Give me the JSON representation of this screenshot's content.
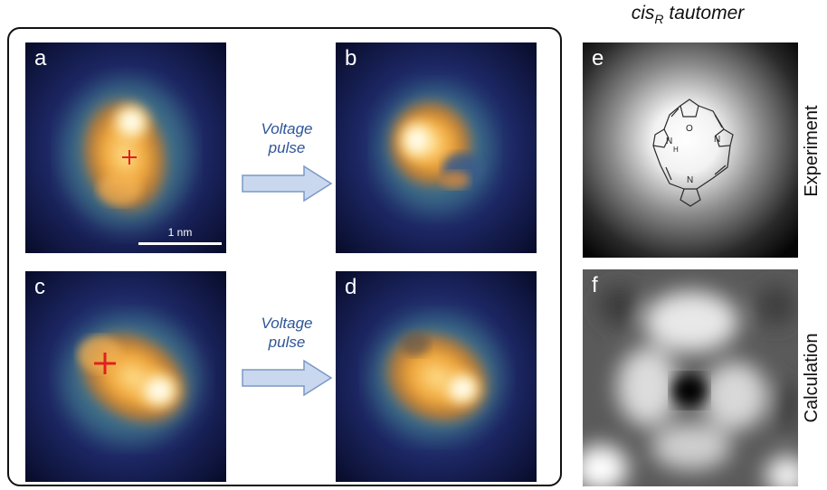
{
  "panels": {
    "a": {
      "label": "a"
    },
    "b": {
      "label": "b"
    },
    "c": {
      "label": "c"
    },
    "d": {
      "label": "d"
    },
    "e": {
      "label": "e"
    },
    "f": {
      "label": "f"
    }
  },
  "arrows": [
    {
      "line1": "Voltage",
      "line2": "pulse"
    },
    {
      "line1": "Voltage",
      "line2": "pulse"
    }
  ],
  "title": {
    "main": "cis",
    "sub": "R",
    "rest": " tautomer"
  },
  "side_labels": {
    "experiment": "Experiment",
    "calculation": "Calculation"
  },
  "scale_bar": {
    "label": "1 nm"
  },
  "molecule_atoms": {
    "nitrogen": "N",
    "hydrogen": "H",
    "oxygen": "O"
  },
  "colors": {
    "marker": "#e02020",
    "arrow_fill": "#c9d8ee",
    "arrow_stroke": "#7c98c6",
    "voltage_text": "#2e5597"
  }
}
